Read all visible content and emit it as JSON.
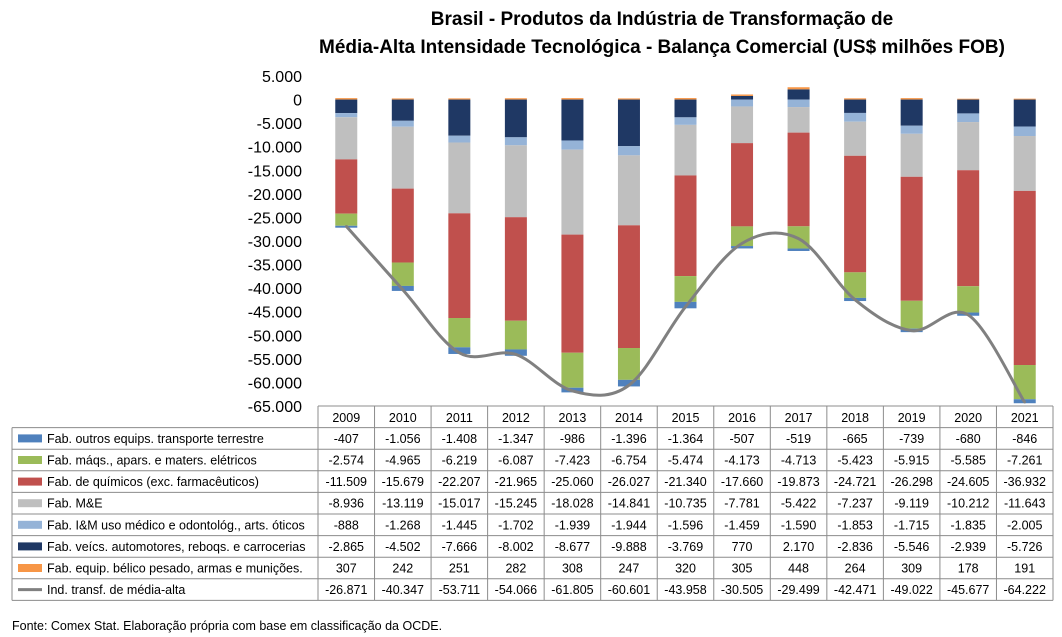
{
  "title_line1": "Brasil - Produtos da Indústria de Transformação de",
  "title_line2": "Média-Alta Intensidade Tecnológica - Balança Comercial (US$ milhões FOB)",
  "source": "Fonte:  Comex Stat. Elaboração própria com base em classificação da OCDE.",
  "chart_data": {
    "type": "bar",
    "stacked": true,
    "categories": [
      "2009",
      "2010",
      "2011",
      "2012",
      "2013",
      "2014",
      "2015",
      "2016",
      "2017",
      "2018",
      "2019",
      "2020",
      "2021"
    ],
    "ylim": [
      -65000,
      5000
    ],
    "yticks": [
      5000,
      0,
      -5000,
      -10000,
      -15000,
      -20000,
      -25000,
      -30000,
      -35000,
      -40000,
      -45000,
      -50000,
      -55000,
      -60000,
      -65000
    ],
    "ytick_labels": [
      "5.000",
      "0",
      "-5.000",
      "-10.000",
      "-15.000",
      "-20.000",
      "-25.000",
      "-30.000",
      "-35.000",
      "-40.000",
      "-45.000",
      "-50.000",
      "-55.000",
      "-60.000",
      "-65.000"
    ],
    "series": [
      {
        "name": "Fab. outros equips. transporte terrestre",
        "color": "#4f81bd",
        "kind": "bar",
        "values": [
          -407,
          -1056,
          -1408,
          -1347,
          -986,
          -1396,
          -1364,
          -507,
          -519,
          -665,
          -739,
          -680,
          -846
        ],
        "labels": [
          "-407",
          "-1.056",
          "-1.408",
          "-1.347",
          "-986",
          "-1.396",
          "-1.364",
          "-507",
          "-519",
          "-665",
          "-739",
          "-680",
          "-846"
        ]
      },
      {
        "name": "Fab. máqs., apars. e maters. elétricos",
        "color": "#9bbb59",
        "kind": "bar",
        "values": [
          -2574,
          -4965,
          -6219,
          -6087,
          -7423,
          -6754,
          -5474,
          -4173,
          -4713,
          -5423,
          -5915,
          -5585,
          -7261
        ],
        "labels": [
          "-2.574",
          "-4.965",
          "-6.219",
          "-6.087",
          "-7.423",
          "-6.754",
          "-5.474",
          "-4.173",
          "-4.713",
          "-5.423",
          "-5.915",
          "-5.585",
          "-7.261"
        ]
      },
      {
        "name": "Fab. de químicos (exc. farmacêuticos)",
        "color": "#c0504d",
        "kind": "bar",
        "values": [
          -11509,
          -15679,
          -22207,
          -21965,
          -25060,
          -26027,
          -21340,
          -17660,
          -19873,
          -24721,
          -26298,
          -24605,
          -36932
        ],
        "labels": [
          "-11.509",
          "-15.679",
          "-22.207",
          "-21.965",
          "-25.060",
          "-26.027",
          "-21.340",
          "-17.660",
          "-19.873",
          "-24.721",
          "-26.298",
          "-24.605",
          "-36.932"
        ]
      },
      {
        "name": "Fab. M&E",
        "color": "#bfbfbf",
        "kind": "bar",
        "values": [
          -8936,
          -13119,
          -15017,
          -15245,
          -18028,
          -14841,
          -10735,
          -7781,
          -5422,
          -7237,
          -9119,
          -10212,
          -11643
        ],
        "labels": [
          "-8.936",
          "-13.119",
          "-15.017",
          "-15.245",
          "-18.028",
          "-14.841",
          "-10.735",
          "-7.781",
          "-5.422",
          "-7.237",
          "-9.119",
          "-10.212",
          "-11.643"
        ]
      },
      {
        "name": "Fab. I&M uso médico e odontológ., arts. óticos",
        "color": "#95b3d7",
        "kind": "bar",
        "values": [
          -888,
          -1268,
          -1445,
          -1702,
          -1939,
          -1944,
          -1596,
          -1459,
          -1590,
          -1853,
          -1715,
          -1835,
          -2005
        ],
        "labels": [
          "-888",
          "-1.268",
          "-1.445",
          "-1.702",
          "-1.939",
          "-1.944",
          "-1.596",
          "-1.459",
          "-1.590",
          "-1.853",
          "-1.715",
          "-1.835",
          "-2.005"
        ]
      },
      {
        "name": "Fab. veícs. automotores, reboqs. e carrocerias",
        "color": "#1f3864",
        "kind": "bar",
        "values": [
          -2865,
          -4502,
          -7666,
          -8002,
          -8677,
          -9888,
          -3769,
          770,
          2170,
          -2836,
          -5546,
          -2939,
          -5726
        ],
        "labels": [
          "-2.865",
          "-4.502",
          "-7.666",
          "-8.002",
          "-8.677",
          "-9.888",
          "-3.769",
          "770",
          "2.170",
          "-2.836",
          "-5.546",
          "-2.939",
          "-5.726"
        ]
      },
      {
        "name": "Fab. equip. bélico pesado, armas e munições.",
        "color": "#f79646",
        "kind": "bar",
        "values": [
          307,
          242,
          251,
          282,
          308,
          247,
          320,
          305,
          448,
          264,
          309,
          178,
          191
        ],
        "labels": [
          "307",
          "242",
          "251",
          "282",
          "308",
          "247",
          "320",
          "305",
          "448",
          "264",
          "309",
          "178",
          "191"
        ]
      },
      {
        "name": "Ind. transf. de média-alta",
        "color": "#808080",
        "kind": "line",
        "values": [
          -26871,
          -40347,
          -53711,
          -54066,
          -61805,
          -60601,
          -43958,
          -30505,
          -29499,
          -42471,
          -49022,
          -45677,
          -64222
        ],
        "labels": [
          "-26.871",
          "-40.347",
          "-53.711",
          "-54.066",
          "-61.805",
          "-60.601",
          "-43.958",
          "-30.505",
          "-29.499",
          "-42.471",
          "-49.022",
          "-45.677",
          "-64.222"
        ]
      }
    ],
    "stack_order_from_zero": [
      5,
      4,
      3,
      2,
      1,
      0
    ]
  }
}
